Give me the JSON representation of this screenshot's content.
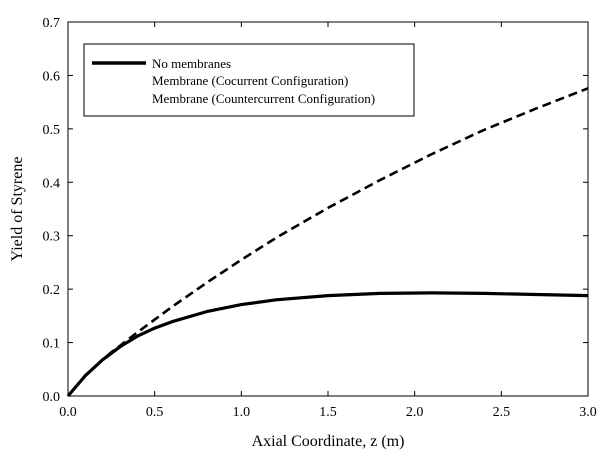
{
  "chart_data": {
    "type": "line",
    "title": "",
    "xlabel": "Axial Coordinate, z (m)",
    "ylabel": "Yield of Styrene",
    "xlim": [
      0.0,
      3.0
    ],
    "ylim": [
      0.0,
      0.7
    ],
    "x_ticks": [
      "0.0",
      "0.5",
      "1.0",
      "1.5",
      "2.0",
      "2.5",
      "3.0"
    ],
    "y_ticks": [
      "0.0",
      "0.1",
      "0.2",
      "0.3",
      "0.4",
      "0.5",
      "0.6",
      "0.7"
    ],
    "grid": false,
    "legend_position": "top-left",
    "series": [
      {
        "name": "No membranes",
        "style": "solid",
        "color": "#000000",
        "x": [
          0.0,
          0.1,
          0.2,
          0.3,
          0.4,
          0.5,
          0.6,
          0.8,
          1.0,
          1.2,
          1.5,
          1.8,
          2.1,
          2.4,
          2.7,
          3.0
        ],
        "y": [
          0.0,
          0.038,
          0.068,
          0.092,
          0.112,
          0.127,
          0.139,
          0.158,
          0.171,
          0.18,
          0.188,
          0.192,
          0.193,
          0.192,
          0.19,
          0.188
        ]
      },
      {
        "name": "Membrane (Cocurrent Configuration)",
        "style": "none",
        "color": "#000000",
        "x": [],
        "y": []
      },
      {
        "name": "Membrane (Countercurrent Configuration)",
        "style": "dashed",
        "color": "#000000",
        "x": [
          0.0,
          0.1,
          0.2,
          0.25,
          0.3,
          0.4,
          0.5,
          0.6,
          0.8,
          1.0,
          1.2,
          1.5,
          1.8,
          2.1,
          2.4,
          2.7,
          3.0
        ],
        "y": [
          0.0,
          0.038,
          0.068,
          0.082,
          0.094,
          0.119,
          0.143,
          0.167,
          0.212,
          0.255,
          0.296,
          0.352,
          0.404,
          0.453,
          0.498,
          0.538,
          0.576
        ]
      }
    ]
  }
}
